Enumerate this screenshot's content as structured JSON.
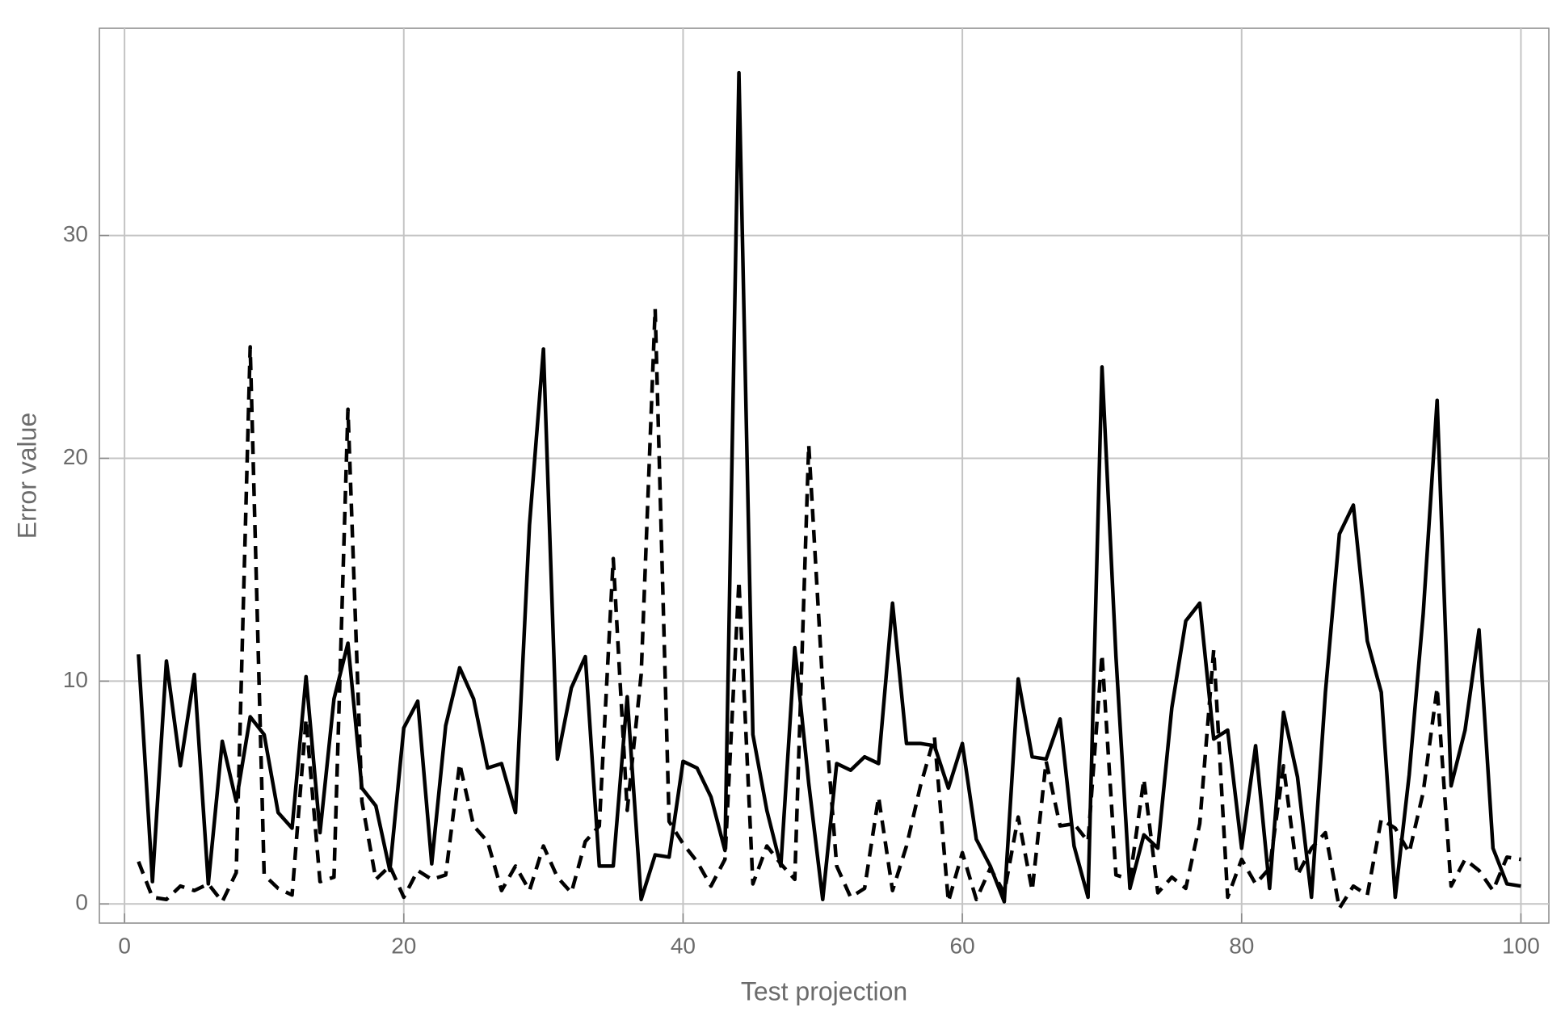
{
  "chart_data": {
    "type": "line",
    "x_label": "Test projection",
    "y_label": "Error value",
    "x": [
      1,
      2,
      3,
      4,
      5,
      6,
      7,
      8,
      9,
      10,
      11,
      12,
      13,
      14,
      15,
      16,
      17,
      18,
      19,
      20,
      21,
      22,
      23,
      24,
      25,
      26,
      27,
      28,
      29,
      30,
      31,
      32,
      33,
      34,
      35,
      36,
      37,
      38,
      39,
      40,
      41,
      42,
      43,
      44,
      45,
      46,
      47,
      48,
      49,
      50,
      51,
      52,
      53,
      54,
      55,
      56,
      57,
      58,
      59,
      60,
      61,
      62,
      63,
      64,
      65,
      66,
      67,
      68,
      69,
      70,
      71,
      72,
      73,
      74,
      75,
      76,
      77,
      78,
      79,
      80,
      81,
      82,
      83,
      84,
      85,
      86,
      87,
      88,
      89,
      90,
      91,
      92,
      93,
      94,
      95,
      96,
      97,
      98,
      99,
      100
    ],
    "series": [
      {
        "color": "#000000",
        "dash": "solid",
        "values": [
          11.2,
          1.0,
          10.9,
          6.2,
          10.3,
          0.9,
          7.3,
          4.6,
          8.4,
          7.6,
          4.1,
          3.4,
          10.2,
          3.2,
          9.2,
          11.7,
          5.2,
          4.4,
          1.5,
          7.9,
          9.1,
          1.8,
          8.0,
          10.6,
          9.2,
          6.1,
          6.3,
          4.1,
          17.0,
          24.9,
          6.5,
          9.7,
          11.1,
          1.7,
          1.7,
          9.3,
          0.2,
          2.2,
          2.1,
          6.4,
          6.1,
          4.8,
          2.4,
          37.3,
          7.6,
          4.2,
          1.7,
          11.5,
          5.4,
          0.2,
          6.3,
          6.0,
          6.6,
          6.3,
          13.5,
          7.2,
          7.2,
          7.1,
          5.2,
          7.2,
          2.9,
          1.7,
          0.1,
          10.1,
          6.6,
          6.5,
          8.3,
          2.6,
          0.3,
          24.1,
          11.1,
          0.7,
          3.1,
          2.5,
          8.8,
          12.7,
          13.5,
          7.4,
          7.8,
          2.5,
          7.1,
          0.7,
          8.6,
          5.7,
          0.3,
          9.5,
          16.6,
          17.9,
          11.8,
          9.5,
          0.3,
          5.8,
          13.0,
          22.6,
          5.3,
          7.8,
          12.3,
          2.5,
          0.9,
          0.8
        ]
      },
      {
        "color": "#000000",
        "dash": "dashed",
        "values": [
          1.9,
          0.3,
          0.2,
          0.8,
          0.6,
          0.9,
          0.1,
          1.4,
          25.0,
          1.3,
          0.7,
          0.4,
          8.3,
          1.0,
          1.2,
          22.2,
          4.6,
          1.1,
          1.7,
          0.3,
          1.5,
          1.1,
          1.3,
          6.3,
          3.5,
          2.8,
          0.6,
          1.7,
          0.6,
          2.6,
          1.2,
          0.5,
          2.8,
          3.5,
          15.5,
          4.2,
          10.3,
          26.7,
          3.7,
          2.7,
          1.9,
          0.8,
          2.0,
          14.5,
          0.9,
          2.6,
          1.8,
          1.1,
          20.6,
          9.8,
          1.7,
          0.3,
          0.7,
          4.8,
          0.6,
          2.6,
          5.3,
          7.5,
          0.1,
          2.3,
          0.2,
          1.6,
          0.5,
          3.9,
          0.6,
          6.4,
          3.5,
          3.6,
          2.8,
          11.2,
          1.3,
          1.1,
          5.6,
          0.5,
          1.2,
          0.7,
          3.6,
          11.4,
          0.3,
          2.0,
          0.9,
          1.6,
          6.2,
          1.3,
          2.5,
          3.2,
          -0.2,
          0.8,
          0.4,
          3.8,
          3.4,
          2.3,
          5.0,
          9.7,
          0.8,
          2.0,
          1.5,
          0.6,
          2.1,
          2.0
        ]
      }
    ],
    "xlim": [
      -1.8,
      102
    ],
    "ylim": [
      -0.86,
      39.3
    ],
    "xticks": [
      0,
      20,
      40,
      60,
      80,
      100
    ],
    "yticks": [
      0,
      10,
      20,
      30
    ],
    "grid": true
  }
}
